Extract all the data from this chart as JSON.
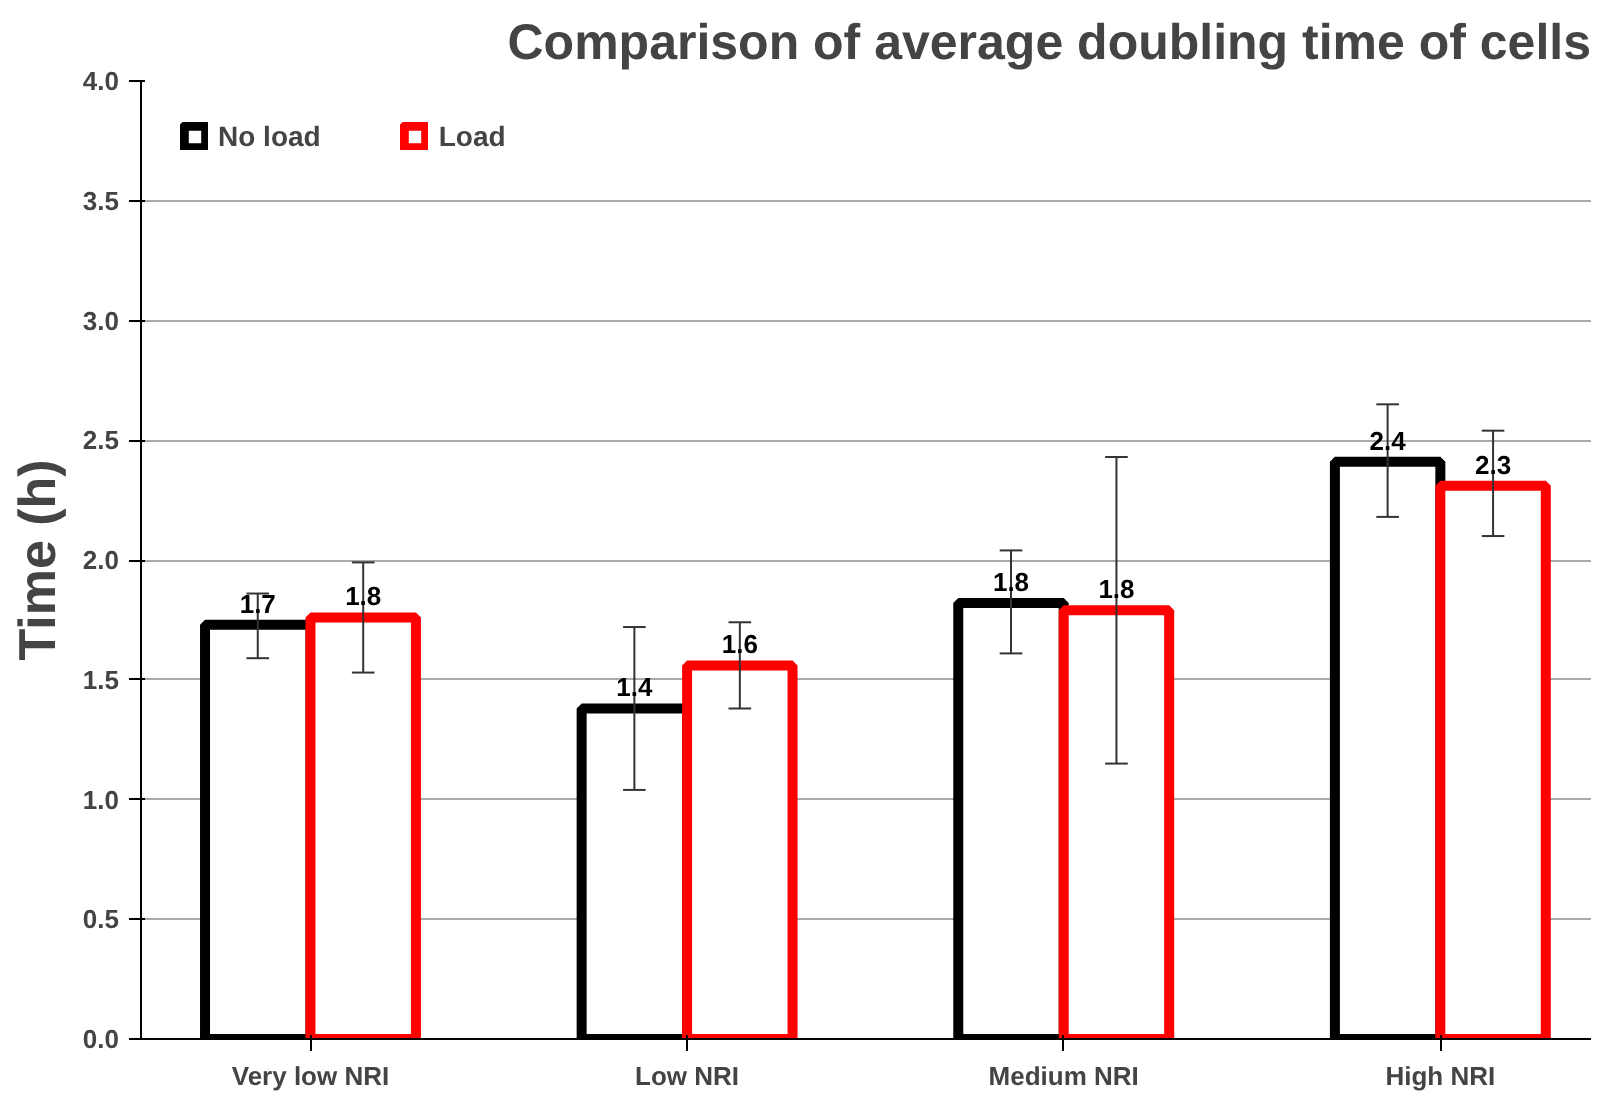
{
  "chart_data": {
    "type": "bar",
    "title": "Comparison of average doubling time of cells",
    "ylabel": "Time (h)",
    "categories": [
      "Very low NRI",
      "Low NRI",
      "Medium NRI",
      "High NRI"
    ],
    "series": [
      {
        "name": "No load",
        "color": "#000000",
        "values": [
          1.73,
          1.38,
          1.82,
          2.41
        ],
        "errors": [
          [
            1.59,
            1.86
          ],
          [
            1.04,
            1.72
          ],
          [
            1.61,
            2.04
          ],
          [
            2.18,
            2.65
          ]
        ],
        "value_labels": [
          "1.7",
          "1.4",
          "1.8",
          "2.4"
        ]
      },
      {
        "name": "Load",
        "color": "#ff0000",
        "values": [
          1.76,
          1.56,
          1.79,
          2.31
        ],
        "errors": [
          [
            1.53,
            1.99
          ],
          [
            1.38,
            1.74
          ],
          [
            1.15,
            2.43
          ],
          [
            2.1,
            2.54
          ]
        ],
        "value_labels": [
          "1.8",
          "1.6",
          "1.8",
          "2.3"
        ]
      }
    ],
    "ylim": [
      0,
      4
    ],
    "yticks": [
      {
        "value": 0,
        "label": "0.0"
      },
      {
        "value": 0.5,
        "label": "0.5"
      },
      {
        "value": 1,
        "label": "1.0"
      },
      {
        "value": 1.5,
        "label": "1.5"
      },
      {
        "value": 2,
        "label": "2.0"
      },
      {
        "value": 2.5,
        "label": "2.5"
      },
      {
        "value": 3,
        "label": "3.0"
      },
      {
        "value": 3.5,
        "label": "3.5"
      },
      {
        "value": 4,
        "label": "4.0"
      }
    ],
    "grid": "y",
    "legend": "top left"
  }
}
